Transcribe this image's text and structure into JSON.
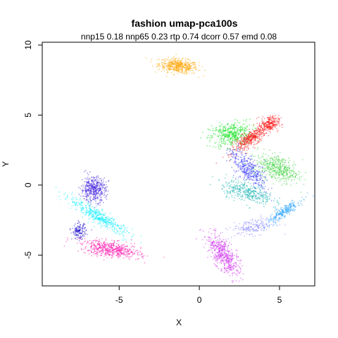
{
  "chart_data": {
    "type": "scatter",
    "title": "fashion umap-pca100s",
    "subtitle": "nnp15 0.18 nnp65 0.23 rtp 0.74 dcorr 0.57 emd 0.08",
    "xlabel": "X",
    "ylabel": "Y",
    "xlim": [
      -9.8,
      7.2
    ],
    "ylim": [
      -7.2,
      10.2
    ],
    "xticks": [
      -5,
      0,
      5
    ],
    "yticks": [
      -5,
      0,
      5,
      10
    ],
    "grid": false,
    "legend": "none",
    "clusters": [
      {
        "color": "#FFA500",
        "center": [
          -1.3,
          8.5
        ],
        "spread": [
          1.1,
          0.45
        ],
        "angle": -8,
        "count": 500
      },
      {
        "color": "#00E010",
        "center": [
          2.0,
          3.6
        ],
        "spread": [
          1.2,
          0.8
        ],
        "angle": 10,
        "count": 450
      },
      {
        "color": "#FF1010",
        "center": [
          3.3,
          3.4
        ],
        "spread": [
          1.4,
          0.4
        ],
        "angle": 40,
        "count": 450
      },
      {
        "color": "#FF1010",
        "center": [
          4.4,
          4.4
        ],
        "spread": [
          0.5,
          0.5
        ],
        "angle": 0,
        "count": 200
      },
      {
        "color": "#30D030",
        "center": [
          4.9,
          1.2
        ],
        "spread": [
          1.3,
          0.8
        ],
        "angle": -25,
        "count": 450
      },
      {
        "color": "#3030FF",
        "center": [
          3.0,
          1.2
        ],
        "spread": [
          1.5,
          0.6
        ],
        "angle": -50,
        "count": 400
      },
      {
        "color": "#00AAAA",
        "center": [
          3.0,
          -0.5
        ],
        "spread": [
          1.5,
          0.6
        ],
        "angle": -20,
        "count": 350
      },
      {
        "color": "#20A0FF",
        "center": [
          5.3,
          -1.9
        ],
        "spread": [
          1.2,
          0.3
        ],
        "angle": 40,
        "count": 250
      },
      {
        "color": "#8080FF",
        "center": [
          3.4,
          -3.0
        ],
        "spread": [
          1.3,
          0.5
        ],
        "angle": 10,
        "count": 200
      },
      {
        "color": "#CC22EE",
        "center": [
          1.5,
          -5.0
        ],
        "spread": [
          1.5,
          0.6
        ],
        "angle": -60,
        "count": 500
      },
      {
        "color": "#4020DD",
        "center": [
          -6.6,
          -0.3
        ],
        "spread": [
          0.7,
          0.8
        ],
        "angle": 0,
        "count": 450
      },
      {
        "color": "#00EEFF",
        "center": [
          -6.2,
          -2.3
        ],
        "spread": [
          2.1,
          0.4
        ],
        "angle": -35,
        "count": 450
      },
      {
        "color": "#2010CC",
        "center": [
          -7.5,
          -3.3
        ],
        "spread": [
          0.4,
          0.5
        ],
        "angle": 0,
        "count": 150
      },
      {
        "color": "#FF10AA",
        "center": [
          -5.5,
          -4.6
        ],
        "spread": [
          1.7,
          0.5
        ],
        "angle": -10,
        "count": 550
      }
    ]
  }
}
